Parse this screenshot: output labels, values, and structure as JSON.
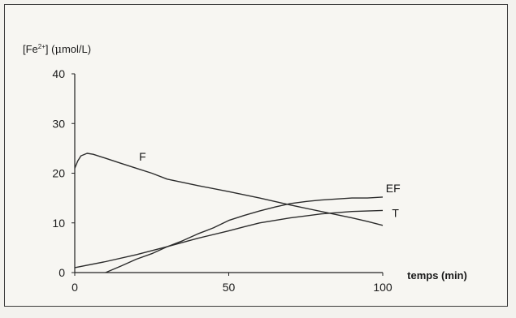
{
  "chart_data": {
    "type": "line",
    "ylabel_parts": {
      "open": "[Fe",
      "sup": "2+",
      "close": "] (",
      "mu": "μ",
      "unit": "mol/L)"
    },
    "xlabel": "temps (min)",
    "xlim": [
      0,
      100
    ],
    "ylim": [
      0,
      40
    ],
    "x_ticks": [
      0,
      50,
      100
    ],
    "y_ticks": [
      0,
      10,
      20,
      30,
      40
    ],
    "grid": false,
    "series": [
      {
        "name": "F",
        "x": [
          0,
          1,
          2,
          4,
          6,
          10,
          15,
          20,
          25,
          30,
          40,
          50,
          60,
          70,
          80,
          90,
          95,
          100
        ],
        "y": [
          21.0,
          22.5,
          23.5,
          24.0,
          23.8,
          23.0,
          22.0,
          21.0,
          20.0,
          18.8,
          17.5,
          16.3,
          15.0,
          13.6,
          12.3,
          11.0,
          10.3,
          9.5
        ]
      },
      {
        "name": "EF",
        "x": [
          10,
          15,
          20,
          25,
          30,
          35,
          40,
          45,
          50,
          55,
          60,
          65,
          70,
          75,
          80,
          85,
          90,
          95,
          100
        ],
        "y": [
          0.0,
          1.3,
          2.7,
          3.8,
          5.2,
          6.4,
          7.8,
          9.0,
          10.5,
          11.5,
          12.4,
          13.2,
          13.9,
          14.3,
          14.6,
          14.8,
          15.0,
          15.0,
          15.2
        ]
      },
      {
        "name": "T",
        "x": [
          0,
          10,
          20,
          30,
          40,
          50,
          55,
          60,
          70,
          80,
          90,
          100
        ],
        "y": [
          1.0,
          2.2,
          3.6,
          5.2,
          6.9,
          8.4,
          9.2,
          10.0,
          11.0,
          11.8,
          12.3,
          12.5
        ]
      }
    ]
  }
}
